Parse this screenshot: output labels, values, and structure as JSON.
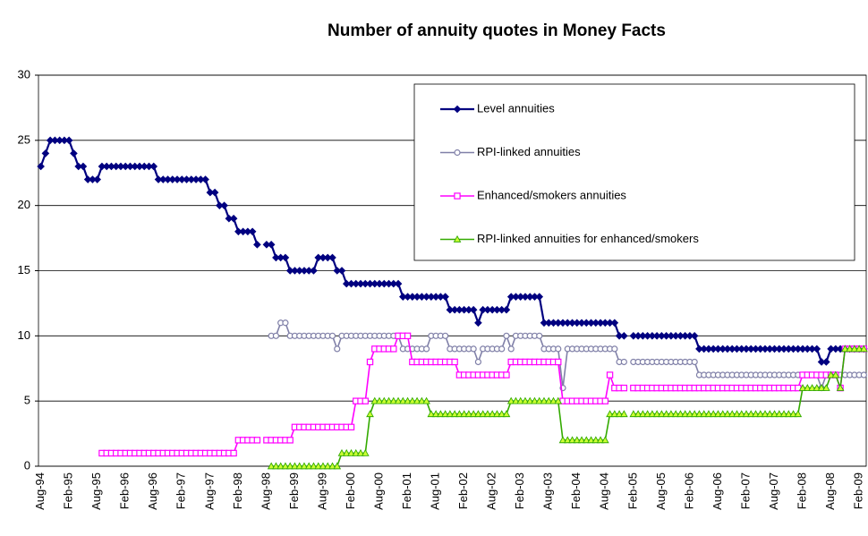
{
  "chart_data": {
    "type": "line",
    "title": "Number of annuity quotes in Money Facts",
    "categories": [
      "Aug-94",
      null,
      null,
      null,
      null,
      null,
      "Feb-95",
      null,
      null,
      null,
      null,
      null,
      "Aug-95",
      null,
      null,
      null,
      null,
      null,
      "Feb-96",
      null,
      null,
      null,
      null,
      null,
      "Aug-96",
      null,
      null,
      null,
      null,
      null,
      "Feb-97",
      null,
      null,
      null,
      null,
      null,
      "Aug-97",
      null,
      null,
      null,
      null,
      null,
      "Feb-98",
      null,
      null,
      null,
      null,
      null,
      "Aug-98",
      null,
      null,
      null,
      null,
      null,
      "Feb-99",
      null,
      null,
      null,
      null,
      null,
      "Aug-99",
      null,
      null,
      null,
      null,
      null,
      "Feb-00",
      null,
      null,
      null,
      null,
      null,
      "Aug-00",
      null,
      null,
      null,
      null,
      null,
      "Feb-01",
      null,
      null,
      null,
      null,
      null,
      "Aug-01",
      null,
      null,
      null,
      null,
      null,
      "Feb-02",
      null,
      null,
      null,
      null,
      null,
      "Aug-02",
      null,
      null,
      null,
      null,
      null,
      "Feb-03",
      null,
      null,
      null,
      null,
      null,
      "Aug-03",
      null,
      null,
      null,
      null,
      null,
      "Feb-04",
      null,
      null,
      null,
      null,
      null,
      "Aug-04",
      null,
      null,
      null,
      null,
      null,
      "Feb-05",
      null,
      null,
      null,
      null,
      null,
      "Aug-05",
      null,
      null,
      null,
      null,
      null,
      "Feb-06",
      null,
      null,
      null,
      null,
      null,
      "Aug-06",
      null,
      null,
      null,
      null,
      null,
      "Feb-07",
      null,
      null,
      null,
      null,
      null,
      "Aug-07",
      null,
      null,
      null,
      null,
      null,
      "Feb-08",
      null,
      null,
      null,
      null,
      null,
      "Aug-08",
      null,
      null,
      null,
      null,
      null,
      "Feb-09",
      null
    ],
    "series": [
      {
        "name": "Level annuities",
        "color": "#000080",
        "marker": "diamond",
        "values": [
          23,
          24,
          25,
          25,
          25,
          25,
          25,
          24,
          23,
          23,
          22,
          22,
          22,
          23,
          23,
          23,
          23,
          23,
          23,
          23,
          23,
          23,
          23,
          23,
          23,
          22,
          22,
          22,
          22,
          22,
          22,
          22,
          22,
          22,
          22,
          22,
          21,
          21,
          20,
          20,
          19,
          19,
          18,
          18,
          18,
          18,
          17,
          null,
          17,
          17,
          16,
          16,
          16,
          15,
          15,
          15,
          15,
          15,
          15,
          16,
          16,
          16,
          16,
          15,
          15,
          14,
          14,
          14,
          14,
          14,
          14,
          14,
          14,
          14,
          14,
          14,
          14,
          13,
          13,
          13,
          13,
          13,
          13,
          13,
          13,
          13,
          13,
          12,
          12,
          12,
          12,
          12,
          12,
          11,
          12,
          12,
          12,
          12,
          12,
          12,
          13,
          13,
          13,
          13,
          13,
          13,
          13,
          11,
          11,
          11,
          11,
          11,
          11,
          11,
          11,
          11,
          11,
          11,
          11,
          11,
          11,
          11,
          11,
          10,
          10,
          null,
          10,
          10,
          10,
          10,
          10,
          10,
          10,
          10,
          10,
          10,
          10,
          10,
          10,
          10,
          9,
          9,
          9,
          9,
          9,
          9,
          9,
          9,
          9,
          9,
          9,
          9,
          9,
          9,
          9,
          9,
          9,
          9,
          9,
          9,
          9,
          9,
          9,
          9,
          9,
          9,
          8,
          8,
          9,
          9,
          9,
          9,
          9,
          9,
          9,
          9
        ]
      },
      {
        "name": "RPI-linked annuities",
        "color": "#8080a8",
        "marker": "circle",
        "values": [
          null,
          null,
          null,
          null,
          null,
          null,
          null,
          null,
          null,
          null,
          null,
          null,
          null,
          null,
          null,
          null,
          null,
          null,
          null,
          null,
          null,
          null,
          null,
          null,
          null,
          null,
          null,
          null,
          null,
          null,
          null,
          null,
          null,
          null,
          null,
          null,
          null,
          null,
          null,
          null,
          null,
          null,
          null,
          null,
          null,
          null,
          null,
          null,
          null,
          10,
          10,
          11,
          11,
          10,
          10,
          10,
          10,
          10,
          10,
          10,
          10,
          10,
          10,
          9,
          10,
          10,
          10,
          10,
          10,
          10,
          10,
          10,
          10,
          10,
          10,
          10,
          10,
          9,
          9,
          9,
          9,
          9,
          9,
          10,
          10,
          10,
          10,
          9,
          9,
          9,
          9,
          9,
          9,
          8,
          9,
          9,
          9,
          9,
          9,
          10,
          9,
          10,
          10,
          10,
          10,
          10,
          10,
          9,
          9,
          9,
          9,
          6,
          9,
          9,
          9,
          9,
          9,
          9,
          9,
          9,
          9,
          9,
          9,
          8,
          8,
          null,
          8,
          8,
          8,
          8,
          8,
          8,
          8,
          8,
          8,
          8,
          8,
          8,
          8,
          8,
          7,
          7,
          7,
          7,
          7,
          7,
          7,
          7,
          7,
          7,
          7,
          7,
          7,
          7,
          7,
          7,
          7,
          7,
          7,
          7,
          7,
          7,
          7,
          7,
          7,
          7,
          6,
          7,
          7,
          7,
          7,
          7,
          7,
          7,
          7,
          7
        ]
      },
      {
        "name": "Enhanced/smokers annuities",
        "color": "#ff00ff",
        "marker": "square",
        "values": [
          null,
          null,
          null,
          null,
          null,
          null,
          null,
          null,
          null,
          null,
          null,
          null,
          null,
          1,
          1,
          1,
          1,
          1,
          1,
          1,
          1,
          1,
          1,
          1,
          1,
          1,
          1,
          1,
          1,
          1,
          1,
          1,
          1,
          1,
          1,
          1,
          1,
          1,
          1,
          1,
          1,
          1,
          2,
          2,
          2,
          2,
          2,
          null,
          2,
          2,
          2,
          2,
          2,
          2,
          3,
          3,
          3,
          3,
          3,
          3,
          3,
          3,
          3,
          3,
          3,
          3,
          3,
          5,
          5,
          5,
          8,
          9,
          9,
          9,
          9,
          9,
          10,
          10,
          10,
          8,
          8,
          8,
          8,
          8,
          8,
          8,
          8,
          8,
          8,
          7,
          7,
          7,
          7,
          7,
          7,
          7,
          7,
          7,
          7,
          7,
          8,
          8,
          8,
          8,
          8,
          8,
          8,
          8,
          8,
          8,
          8,
          5,
          5,
          5,
          5,
          5,
          5,
          5,
          5,
          5,
          5,
          7,
          6,
          6,
          6,
          null,
          6,
          6,
          6,
          6,
          6,
          6,
          6,
          6,
          6,
          6,
          6,
          6,
          6,
          6,
          6,
          6,
          6,
          6,
          6,
          6,
          6,
          6,
          6,
          6,
          6,
          6,
          6,
          6,
          6,
          6,
          6,
          6,
          6,
          6,
          6,
          6,
          7,
          7,
          7,
          7,
          7,
          7,
          7,
          7,
          6,
          9,
          9,
          9,
          9,
          9
        ]
      },
      {
        "name": "RPI-linked annuities for enhanced/smokers",
        "color": "#33aa00",
        "marker": "triangle",
        "values": [
          null,
          null,
          null,
          null,
          null,
          null,
          null,
          null,
          null,
          null,
          null,
          null,
          null,
          null,
          null,
          null,
          null,
          null,
          null,
          null,
          null,
          null,
          null,
          null,
          null,
          null,
          null,
          null,
          null,
          null,
          null,
          null,
          null,
          null,
          null,
          null,
          null,
          null,
          null,
          null,
          null,
          null,
          null,
          null,
          null,
          null,
          null,
          null,
          null,
          0,
          0,
          0,
          0,
          0,
          0,
          0,
          0,
          0,
          0,
          0,
          0,
          0,
          0,
          0,
          1,
          1,
          1,
          1,
          1,
          1,
          4,
          5,
          5,
          5,
          5,
          5,
          5,
          5,
          5,
          5,
          5,
          5,
          5,
          4,
          4,
          4,
          4,
          4,
          4,
          4,
          4,
          4,
          4,
          4,
          4,
          4,
          4,
          4,
          4,
          4,
          5,
          5,
          5,
          5,
          5,
          5,
          5,
          5,
          5,
          5,
          5,
          2,
          2,
          2,
          2,
          2,
          2,
          2,
          2,
          2,
          2,
          4,
          4,
          4,
          4,
          null,
          4,
          4,
          4,
          4,
          4,
          4,
          4,
          4,
          4,
          4,
          4,
          4,
          4,
          4,
          4,
          4,
          4,
          4,
          4,
          4,
          4,
          4,
          4,
          4,
          4,
          4,
          4,
          4,
          4,
          4,
          4,
          4,
          4,
          4,
          4,
          4,
          6,
          6,
          6,
          6,
          6,
          6,
          7,
          7,
          6,
          9,
          9,
          9,
          9,
          9
        ]
      }
    ],
    "ylim": [
      0,
      30
    ],
    "yticks": [
      0,
      5,
      10,
      15,
      20,
      25,
      30
    ],
    "grid": true,
    "legend": "upper right"
  }
}
